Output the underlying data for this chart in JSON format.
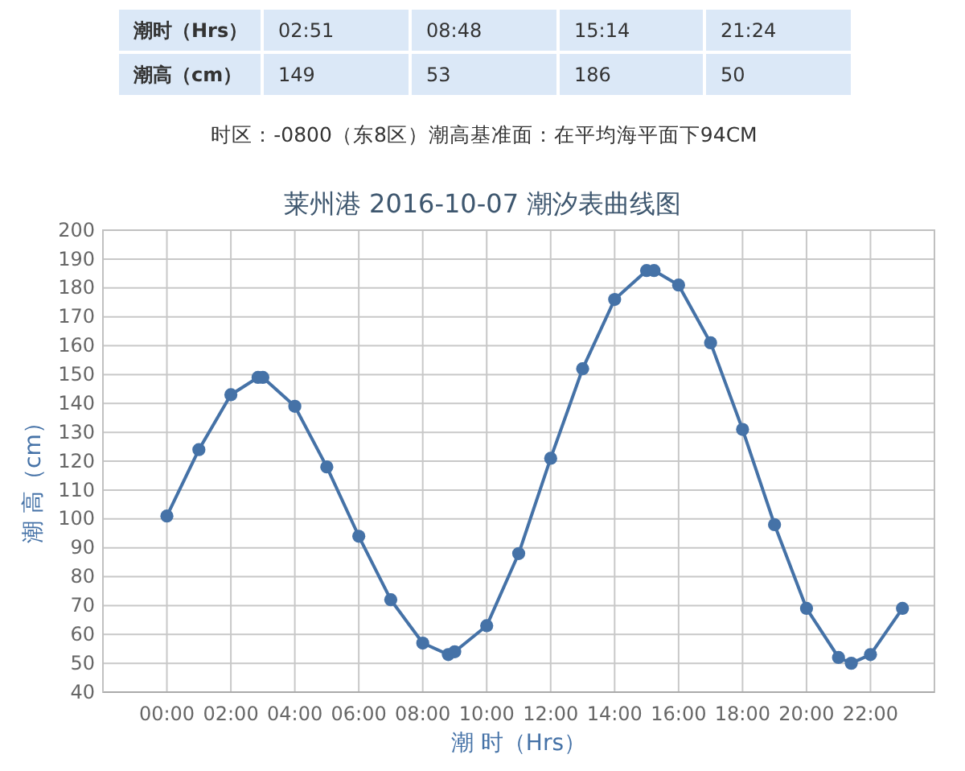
{
  "chart_data": {
    "type": "line",
    "title": "莱州港 2016-10-07 潮汐表曲线图",
    "xlabel": "潮 时（Hrs）",
    "ylabel": "潮 高（cm）",
    "annotations": [
      "潮时（Hrs）",
      "02:51",
      "08:48",
      "15:14",
      "21:24",
      "潮高（cm）",
      "149",
      "53",
      "186",
      "50",
      "时区：-0800（东8区）潮高基准面：在平均海平面下94CM"
    ],
    "x": [
      0,
      1,
      2,
      2.85,
      3,
      4,
      5,
      6,
      7,
      8,
      8.8,
      9,
      10,
      11,
      12,
      13,
      14,
      15,
      15.233,
      16,
      17,
      18,
      19,
      20,
      21,
      21.4,
      22,
      23
    ],
    "series": [
      {
        "color": "#4572a7",
        "values": [
          101,
          124,
          143,
          149,
          149,
          139,
          118,
          94,
          72,
          57,
          53,
          54,
          63,
          88,
          121,
          152,
          176,
          186,
          186,
          181,
          161,
          131,
          98,
          69,
          52,
          50,
          53,
          69
        ]
      }
    ],
    "xlim": [
      -2,
      24
    ],
    "xticks": [
      {
        "value": 0,
        "label": "00:00"
      },
      {
        "value": 2,
        "label": "02:00"
      },
      {
        "value": 4,
        "label": "04:00"
      },
      {
        "value": 6,
        "label": "06:00"
      },
      {
        "value": 8,
        "label": "08:00"
      },
      {
        "value": 10,
        "label": "10:00"
      },
      {
        "value": 12,
        "label": "12:00"
      },
      {
        "value": 14,
        "label": "14:00"
      },
      {
        "value": 16,
        "label": "16:00"
      },
      {
        "value": 18,
        "label": "18:00"
      },
      {
        "value": 20,
        "label": "20:00"
      },
      {
        "value": 22,
        "label": "22:00"
      }
    ],
    "ylim": [
      40,
      200
    ],
    "yticks": [
      40,
      50,
      60,
      70,
      80,
      90,
      100,
      110,
      120,
      130,
      140,
      150,
      160,
      170,
      180,
      190,
      200
    ],
    "grid": true,
    "marker": "circle",
    "line_style": "solid"
  }
}
